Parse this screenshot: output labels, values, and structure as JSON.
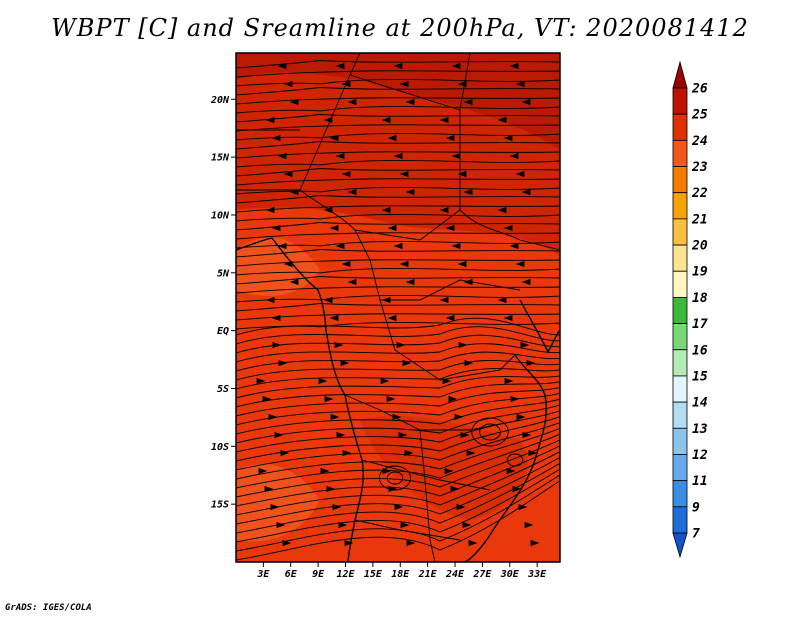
{
  "title": "WBPT [C] and Sreamline at 200hPa, VT: 2020081412",
  "credit": "GrADS: IGES/COLA",
  "map": {
    "lon_range": [
      0,
      35.5
    ],
    "lat_range": [
      -20,
      24
    ],
    "y_ticks": [
      {
        "value": 20,
        "label": "20N"
      },
      {
        "value": 15,
        "label": "15N"
      },
      {
        "value": 10,
        "label": "10N"
      },
      {
        "value": 5,
        "label": "5N"
      },
      {
        "value": 0,
        "label": "EQ"
      },
      {
        "value": -5,
        "label": "5S"
      },
      {
        "value": -10,
        "label": "10S"
      },
      {
        "value": -15,
        "label": "15S"
      }
    ],
    "x_ticks": [
      {
        "value": 3,
        "label": "3E"
      },
      {
        "value": 6,
        "label": "6E"
      },
      {
        "value": 9,
        "label": "9E"
      },
      {
        "value": 12,
        "label": "12E"
      },
      {
        "value": 15,
        "label": "15E"
      },
      {
        "value": 18,
        "label": "18E"
      },
      {
        "value": 21,
        "label": "21E"
      },
      {
        "value": 24,
        "label": "24E"
      },
      {
        "value": 27,
        "label": "27E"
      },
      {
        "value": 30,
        "label": "30E"
      },
      {
        "value": 33,
        "label": "33E"
      }
    ],
    "shading_colors": {
      "background": "#e8380c",
      "warmer": "#c41e00",
      "cooler": "#f0521c"
    }
  },
  "colorbar": {
    "labels": [
      "26",
      "25",
      "24",
      "23",
      "22",
      "21",
      "20",
      "19",
      "18",
      "17",
      "16",
      "15",
      "14",
      "13",
      "12",
      "11",
      "9",
      "7"
    ],
    "colors": [
      "#9c0000",
      "#be1300",
      "#e03200",
      "#f2581a",
      "#f47d00",
      "#f7a208",
      "#f8c040",
      "#fbe491",
      "#fdf8c4",
      "#3cb83c",
      "#78d878",
      "#b4eab4",
      "#e0f6f8",
      "#b4dcf4",
      "#8cc4f0",
      "#64aaec",
      "#3c8ce4",
      "#1e6ed8",
      "#1452cc"
    ]
  }
}
